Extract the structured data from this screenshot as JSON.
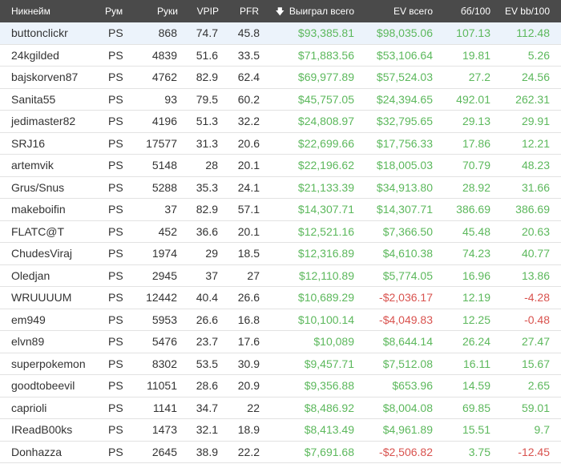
{
  "colors": {
    "header_bg": "#4a4a4a",
    "positive": "#5cb85c",
    "negative": "#d9534f",
    "selected_row": "#ecf3fb"
  },
  "header": {
    "name": "Никнейм",
    "room": "Рум",
    "hands": "Руки",
    "vpip": "VPIP",
    "pfr": "PFR",
    "won": "Выиграл всего",
    "won_sort_icon": "arrow-down-icon",
    "ev": "EV всего",
    "bb100": "бб/100",
    "evbb100": "EV bb/100"
  },
  "rows": [
    {
      "name": "buttonclickr",
      "room": "PS",
      "hands": "868",
      "vpip": "74.7",
      "pfr": "45.8",
      "won": "$93,385.81",
      "ev": "$98,035.06",
      "bb": "107.13",
      "evbb": "112.48"
    },
    {
      "name": "24kgilded",
      "room": "PS",
      "hands": "4839",
      "vpip": "51.6",
      "pfr": "33.5",
      "won": "$71,883.56",
      "ev": "$53,106.64",
      "bb": "19.81",
      "evbb": "5.26"
    },
    {
      "name": "bajskorven87",
      "room": "PS",
      "hands": "4762",
      "vpip": "82.9",
      "pfr": "62.4",
      "won": "$69,977.89",
      "ev": "$57,524.03",
      "bb": "27.2",
      "evbb": "24.56"
    },
    {
      "name": "Sanita55",
      "room": "PS",
      "hands": "93",
      "vpip": "79.5",
      "pfr": "60.2",
      "won": "$45,757.05",
      "ev": "$24,394.65",
      "bb": "492.01",
      "evbb": "262.31"
    },
    {
      "name": "jedimaster82",
      "room": "PS",
      "hands": "4196",
      "vpip": "51.3",
      "pfr": "32.2",
      "won": "$24,808.97",
      "ev": "$32,795.65",
      "bb": "29.13",
      "evbb": "29.91"
    },
    {
      "name": "SRJ16",
      "room": "PS",
      "hands": "17577",
      "vpip": "31.3",
      "pfr": "20.6",
      "won": "$22,699.66",
      "ev": "$17,756.33",
      "bb": "17.86",
      "evbb": "12.21"
    },
    {
      "name": "artemvik",
      "room": "PS",
      "hands": "5148",
      "vpip": "28",
      "pfr": "20.1",
      "won": "$22,196.62",
      "ev": "$18,005.03",
      "bb": "70.79",
      "evbb": "48.23"
    },
    {
      "name": "Grus/Snus",
      "room": "PS",
      "hands": "5288",
      "vpip": "35.3",
      "pfr": "24.1",
      "won": "$21,133.39",
      "ev": "$34,913.80",
      "bb": "28.92",
      "evbb": "31.66"
    },
    {
      "name": "makeboifin",
      "room": "PS",
      "hands": "37",
      "vpip": "82.9",
      "pfr": "57.1",
      "won": "$14,307.71",
      "ev": "$14,307.71",
      "bb": "386.69",
      "evbb": "386.69"
    },
    {
      "name": "FLATC@T",
      "room": "PS",
      "hands": "452",
      "vpip": "36.6",
      "pfr": "20.1",
      "won": "$12,521.16",
      "ev": "$7,366.50",
      "bb": "45.48",
      "evbb": "20.63"
    },
    {
      "name": "ChudesViraj",
      "room": "PS",
      "hands": "1974",
      "vpip": "29",
      "pfr": "18.5",
      "won": "$12,316.89",
      "ev": "$4,610.38",
      "bb": "74.23",
      "evbb": "40.77"
    },
    {
      "name": "Oledjan",
      "room": "PS",
      "hands": "2945",
      "vpip": "37",
      "pfr": "27",
      "won": "$12,110.89",
      "ev": "$5,774.05",
      "bb": "16.96",
      "evbb": "13.86"
    },
    {
      "name": "WRUUUUM",
      "room": "PS",
      "hands": "12442",
      "vpip": "40.4",
      "pfr": "26.6",
      "won": "$10,689.29",
      "ev": "-$2,036.17",
      "bb": "12.19",
      "evbb": "-4.28"
    },
    {
      "name": "em949",
      "room": "PS",
      "hands": "5953",
      "vpip": "26.6",
      "pfr": "16.8",
      "won": "$10,100.14",
      "ev": "-$4,049.83",
      "bb": "12.25",
      "evbb": "-0.48"
    },
    {
      "name": "elvn89",
      "room": "PS",
      "hands": "5476",
      "vpip": "23.7",
      "pfr": "17.6",
      "won": "$10,089",
      "ev": "$8,644.14",
      "bb": "26.24",
      "evbb": "27.47"
    },
    {
      "name": "superpokemon",
      "room": "PS",
      "hands": "8302",
      "vpip": "53.5",
      "pfr": "30.9",
      "won": "$9,457.71",
      "ev": "$7,512.08",
      "bb": "16.11",
      "evbb": "15.67"
    },
    {
      "name": "goodtobeevil",
      "room": "PS",
      "hands": "11051",
      "vpip": "28.6",
      "pfr": "20.9",
      "won": "$9,356.88",
      "ev": "$653.96",
      "bb": "14.59",
      "evbb": "2.65"
    },
    {
      "name": "caprioli",
      "room": "PS",
      "hands": "1141",
      "vpip": "34.7",
      "pfr": "22",
      "won": "$8,486.92",
      "ev": "$8,004.08",
      "bb": "69.85",
      "evbb": "59.01"
    },
    {
      "name": "IReadB00ks",
      "room": "PS",
      "hands": "1473",
      "vpip": "32.1",
      "pfr": "18.9",
      "won": "$8,413.49",
      "ev": "$4,961.89",
      "bb": "15.51",
      "evbb": "9.7"
    },
    {
      "name": "Donhazza",
      "room": "PS",
      "hands": "2645",
      "vpip": "38.9",
      "pfr": "22.2",
      "won": "$7,691.68",
      "ev": "-$2,506.82",
      "bb": "3.75",
      "evbb": "-12.45"
    }
  ]
}
